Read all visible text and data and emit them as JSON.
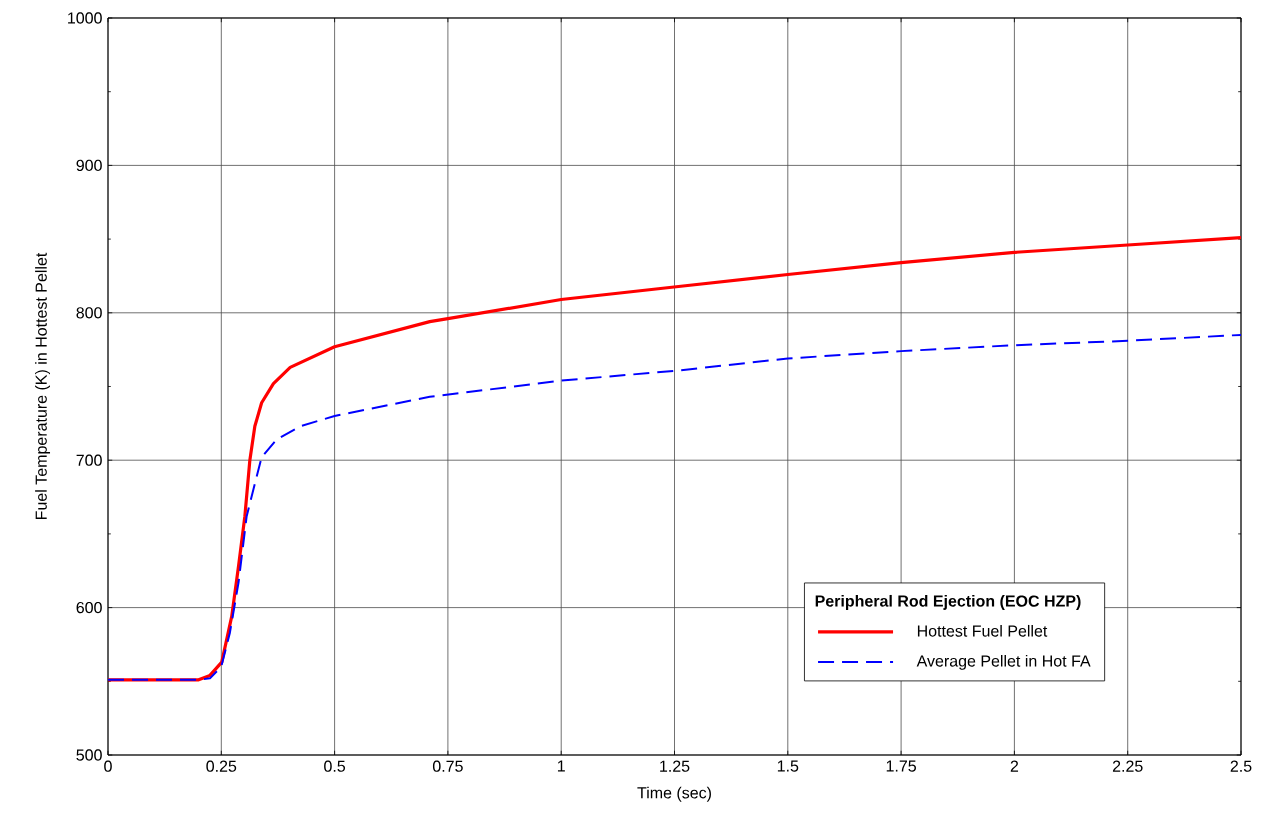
{
  "chart_data": {
    "type": "line",
    "xlabel": "Time (sec)",
    "ylabel": "Fuel Temperature (K) in Hottest Pellet",
    "legend_title": "Peripheral Rod Ejection (EOC HZP)",
    "xlim": [
      0,
      2.5
    ],
    "ylim": [
      500,
      1000
    ],
    "xticks": [
      0,
      0.25,
      0.5,
      0.75,
      1,
      1.25,
      1.5,
      1.75,
      2,
      2.25,
      2.5
    ],
    "yticks": [
      500,
      600,
      700,
      800,
      900,
      1000
    ],
    "grid": true,
    "legend": "bottom right",
    "series": [
      {
        "name": "Hottest Fuel Pellet",
        "color": "#ff0000",
        "line_style": "solid",
        "x": [
          0,
          0.16,
          0.2,
          0.225,
          0.251,
          0.273,
          0.288,
          0.302,
          0.313,
          0.324,
          0.339,
          0.365,
          0.402,
          0.5,
          0.71,
          0.75,
          1.0,
          1.264,
          1.5,
          1.75,
          2.0,
          2.25,
          2.5
        ],
        "values": [
          551,
          551,
          551,
          554,
          563,
          594,
          628,
          662,
          700,
          723,
          739,
          752,
          763,
          777,
          794,
          796,
          809,
          818,
          826,
          834,
          841,
          846,
          851
        ]
      },
      {
        "name": "Average Pellet in Hot FA",
        "color": "#0000ff",
        "line_style": "dashed",
        "x": [
          0,
          0.16,
          0.2,
          0.225,
          0.25,
          0.269,
          0.288,
          0.306,
          0.324,
          0.339,
          0.372,
          0.424,
          0.5,
          0.71,
          1.0,
          1.264,
          1.5,
          1.75,
          2.0,
          2.25,
          2.5
        ],
        "values": [
          551,
          551,
          551,
          552,
          560,
          583,
          617,
          662,
          684,
          702,
          714,
          723,
          730,
          743,
          754,
          761,
          769,
          774,
          778,
          781,
          785
        ]
      }
    ]
  }
}
